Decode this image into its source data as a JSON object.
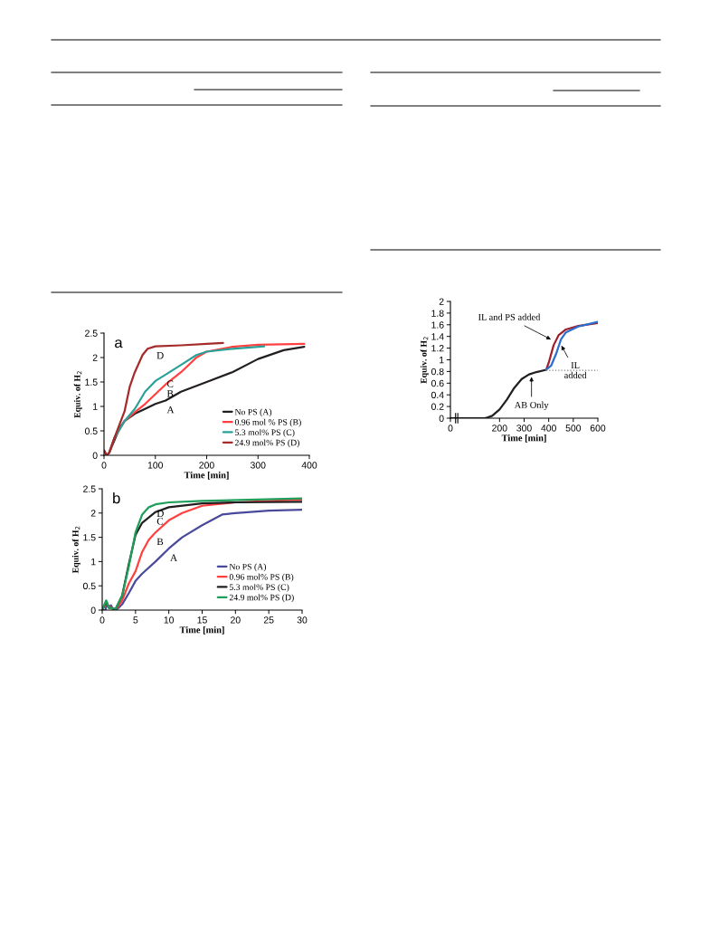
{
  "chart_data": [
    {
      "type": "line",
      "xlabel": "Time [min]",
      "ylabel": "Equiv. of H$_{2}$",
      "xlim": [
        0,
        400
      ],
      "xticks": [
        0,
        100,
        200,
        300,
        400
      ],
      "ylim": [
        0,
        2.5
      ],
      "yticks": [
        0,
        0.5,
        1,
        1.5,
        2,
        2.5
      ],
      "grid": false,
      "legend": "bottom right",
      "marker": "none",
      "line_style": "solid",
      "annotations": [
        "a",
        {
          "text": "A",
          "x": 120,
          "y": 1.12
        },
        {
          "text": "B",
          "x": 120,
          "y": 1.45
        },
        {
          "text": "C",
          "x": 120,
          "y": 1.65
        },
        {
          "text": "D",
          "x": 100,
          "y": 2.23
        }
      ],
      "series": [
        {
          "name": "No PS (A)",
          "color": "#231f20",
          "x": [
            0,
            5,
            10,
            20,
            30,
            40,
            60,
            80,
            100,
            120,
            150,
            200,
            250,
            300,
            350,
            390
          ],
          "values": [
            0.1,
            0,
            0.05,
            0.3,
            0.55,
            0.7,
            0.85,
            0.95,
            1.05,
            1.12,
            1.3,
            1.5,
            1.7,
            1.97,
            2.15,
            2.22
          ]
        },
        {
          "name": "0.96 mol % PS (B)",
          "color": "#ff4040",
          "x": [
            10,
            20,
            40,
            60,
            80,
            100,
            120,
            150,
            180,
            200,
            250,
            300,
            390
          ],
          "values": [
            0.05,
            0.35,
            0.7,
            0.88,
            1.05,
            1.25,
            1.45,
            1.7,
            2.0,
            2.12,
            2.22,
            2.26,
            2.28
          ]
        },
        {
          "name": "5.3 mol% PS (C)",
          "color": "#2aa198",
          "x": [
            10,
            20,
            40,
            60,
            80,
            100,
            120,
            150,
            180,
            200,
            250,
            312
          ],
          "values": [
            0.05,
            0.35,
            0.7,
            0.95,
            1.3,
            1.52,
            1.65,
            1.85,
            2.05,
            2.12,
            2.18,
            2.23
          ]
        },
        {
          "name": "24.9 mol% PS (D)",
          "color": "#a52a2a",
          "x": [
            0,
            5,
            10,
            20,
            40,
            50,
            60,
            75,
            85,
            100,
            150,
            200,
            232
          ],
          "values": [
            0.1,
            0,
            0.05,
            0.35,
            0.9,
            1.4,
            1.7,
            2.05,
            2.18,
            2.23,
            2.25,
            2.28,
            2.3
          ]
        }
      ]
    },
    {
      "type": "line",
      "xlabel": "Time [min]",
      "ylabel": "Equiv. of H$_{2}$",
      "xlim": [
        0,
        30
      ],
      "xticks": [
        0,
        5,
        10,
        15,
        20,
        25,
        30
      ],
      "ylim": [
        0,
        2.5
      ],
      "yticks": [
        0,
        0.5,
        1,
        1.5,
        2,
        2.5
      ],
      "grid": false,
      "legend": "bottom right",
      "marker": "none",
      "line_style": "solid",
      "annotations": [
        "b",
        {
          "text": "A",
          "x": 10,
          "y": 1.27
        },
        {
          "text": "B",
          "x": 8,
          "y": 1.6
        },
        {
          "text": "C",
          "x": 8,
          "y": 2.02
        },
        {
          "text": "D",
          "x": 8,
          "y": 2.18
        }
      ],
      "series": [
        {
          "name": "No PS (A)",
          "color": "#4a4a9c",
          "x": [
            0,
            0.5,
            0.7,
            1,
            1.3,
            1.7,
            2,
            2.5,
            3,
            4,
            5,
            6,
            8,
            10,
            12,
            15,
            18,
            20,
            25,
            30
          ],
          "values": [
            0,
            0,
            0.15,
            0.05,
            0.1,
            0,
            0,
            0.05,
            0.12,
            0.35,
            0.6,
            0.75,
            1.0,
            1.27,
            1.5,
            1.75,
            1.97,
            2.0,
            2.05,
            2.07
          ]
        },
        {
          "name": "0.96 mol% PS (B)",
          "color": "#ff4040",
          "x": [
            0,
            0.6,
            1,
            2,
            3,
            4,
            5,
            6,
            7,
            8,
            10,
            12,
            15,
            20,
            30
          ],
          "values": [
            0,
            0.15,
            0.08,
            0,
            0.2,
            0.55,
            0.8,
            1.2,
            1.45,
            1.6,
            1.85,
            2.0,
            2.15,
            2.22,
            2.28
          ]
        },
        {
          "name": "5.3 mol% PS (C)",
          "color": "#231f20",
          "x": [
            0,
            0.6,
            1,
            2,
            3,
            4,
            5,
            6,
            8,
            10,
            15,
            20,
            30
          ],
          "values": [
            0,
            0.18,
            0.05,
            0.02,
            0.3,
            0.95,
            1.55,
            1.8,
            2.02,
            2.12,
            2.2,
            2.22,
            2.23
          ]
        },
        {
          "name": "24.9 mol% PS (D)",
          "color": "#1e9e5a",
          "x": [
            0,
            0.6,
            1,
            2,
            3,
            4,
            5,
            6,
            7,
            8,
            10,
            15,
            30
          ],
          "values": [
            0,
            0.2,
            0.05,
            0.02,
            0.3,
            0.9,
            1.6,
            1.97,
            2.12,
            2.18,
            2.22,
            2.25,
            2.3
          ]
        }
      ]
    },
    {
      "type": "line",
      "xlabel": "Time [min]",
      "ylabel": "Equiv. of H$_{2}$",
      "xlim": [
        0,
        600
      ],
      "xticks": [
        0,
        200,
        300,
        400,
        500,
        600
      ],
      "ylim": [
        0,
        2
      ],
      "yticks": [
        0,
        0.2,
        0.4,
        0.6,
        0.8,
        1,
        1.2,
        1.4,
        1.6,
        1.8,
        2
      ],
      "grid": false,
      "marker": "none",
      "annotations": [
        {
          "text": "IL and PS added",
          "x": 418,
          "y": 1.33
        },
        {
          "text": "IL\nadded",
          "x": 447,
          "y": 1.28
        },
        {
          "text": "AB Only",
          "x": 330,
          "y": 0.75
        }
      ],
      "series": [
        {
          "color": "#231f20",
          "line_style": "solid",
          "x": [
            0,
            140,
            150,
            170,
            200,
            230,
            260,
            290,
            320,
            350,
            390
          ],
          "values": [
            0,
            0,
            0.01,
            0.04,
            0.15,
            0.32,
            0.52,
            0.67,
            0.75,
            0.79,
            0.83
          ]
        },
        {
          "color": "#a01e2a",
          "line_style": "solid",
          "x": [
            390,
            400,
            420,
            440,
            470,
            520,
            600
          ],
          "values": [
            0.83,
            0.95,
            1.25,
            1.42,
            1.52,
            1.58,
            1.63
          ]
        },
        {
          "color": "#2a6fcf",
          "line_style": "solid",
          "x": [
            390,
            410,
            430,
            450,
            470,
            520,
            600
          ],
          "values": [
            0.83,
            0.9,
            1.1,
            1.35,
            1.47,
            1.57,
            1.65
          ]
        },
        {
          "color": "#808080",
          "line_style": "dotted",
          "x": [
            390,
            600
          ],
          "values": [
            0.82,
            0.82
          ]
        }
      ]
    }
  ]
}
